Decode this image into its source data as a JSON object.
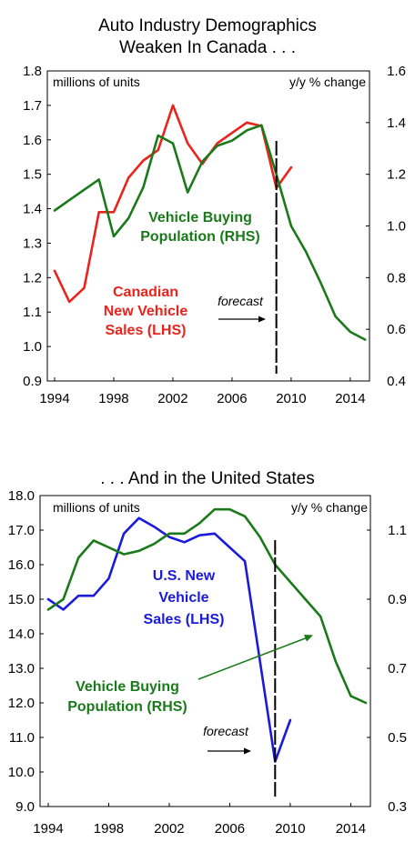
{
  "chart_data": [
    {
      "type": "line",
      "title_lines": [
        "Auto Industry Demographics",
        "Weaken In Canada . . ."
      ],
      "left_axis_note": "millions of units",
      "right_axis_note": "y/y % change",
      "ylim_left": [
        0.9,
        1.8
      ],
      "yticks_left": [
        "0.9",
        "1.0",
        "1.1",
        "1.2",
        "1.3",
        "1.4",
        "1.5",
        "1.6",
        "1.7",
        "1.8"
      ],
      "ylim_right": [
        0.4,
        1.6
      ],
      "yticks_right": [
        "0.4",
        "0.6",
        "0.8",
        "1.0",
        "1.2",
        "1.4",
        "1.6"
      ],
      "xlim": [
        1994,
        2015
      ],
      "xticks": [
        "1994",
        "1998",
        "2002",
        "2006",
        "2010",
        "2014"
      ],
      "forecast_year": 2009,
      "forecast_label": "forecast",
      "labels": {
        "rhs": [
          "Vehicle Buying",
          "Population (RHS)"
        ],
        "lhs": [
          "Canadian",
          "New Vehicle",
          "Sales (LHS)"
        ]
      },
      "series": [
        {
          "name": "Canadian New Vehicle Sales (LHS)",
          "axis": "left",
          "color": "#e8241c",
          "x": [
            1994,
            1995,
            1996,
            1997,
            1998,
            1999,
            2000,
            2001,
            2002,
            2003,
            2004,
            2005,
            2006,
            2007,
            2008,
            2009,
            2010
          ],
          "y": [
            1.22,
            1.13,
            1.17,
            1.39,
            1.39,
            1.49,
            1.54,
            1.57,
            1.7,
            1.59,
            1.53,
            1.59,
            1.62,
            1.65,
            1.64,
            1.46,
            1.52
          ]
        },
        {
          "name": "Vehicle Buying Population (RHS)",
          "axis": "right",
          "color": "#1a7a1a",
          "x": [
            1994,
            1995,
            1996,
            1997,
            1998,
            1999,
            2000,
            2001,
            2002,
            2003,
            2004,
            2005,
            2006,
            2007,
            2008,
            2009,
            2010,
            2011,
            2012,
            2013,
            2014,
            2015
          ],
          "y": [
            1.06,
            1.1,
            1.14,
            1.18,
            0.96,
            1.03,
            1.15,
            1.35,
            1.32,
            1.13,
            1.25,
            1.31,
            1.33,
            1.37,
            1.39,
            1.2,
            1.0,
            0.9,
            0.78,
            0.65,
            0.59,
            0.56
          ]
        }
      ]
    },
    {
      "type": "line",
      "title_lines": [
        ". . . And in the United States"
      ],
      "left_axis_note": "millions of units",
      "right_axis_note": "y/y % change",
      "ylim_left": [
        9.0,
        18.0
      ],
      "yticks_left": [
        "9.0",
        "10.0",
        "11.0",
        "12.0",
        "13.0",
        "14.0",
        "15.0",
        "16.0",
        "17.0",
        "18.0"
      ],
      "ylim_right": [
        0.3,
        1.2
      ],
      "yticks_right": [
        "0.3",
        "0.5",
        "0.7",
        "0.9",
        "1.1"
      ],
      "xlim": [
        1994,
        2015
      ],
      "xticks": [
        "1994",
        "1998",
        "2002",
        "2006",
        "2010",
        "2014"
      ],
      "forecast_year": 2009,
      "forecast_label": "forecast",
      "labels": {
        "lhs": [
          "U.S. New",
          "Vehicle",
          "Sales (LHS)"
        ],
        "rhs": [
          "Vehicle Buying",
          "Population (RHS)"
        ]
      },
      "series": [
        {
          "name": "U.S. New Vehicle Sales (LHS)",
          "axis": "left",
          "color": "#1a1adb",
          "x": [
            1994,
            1995,
            1996,
            1997,
            1998,
            1999,
            2000,
            2001,
            2002,
            2003,
            2004,
            2005,
            2006,
            2007,
            2008,
            2009,
            2010
          ],
          "y": [
            15.0,
            14.7,
            15.1,
            15.1,
            15.6,
            16.9,
            17.35,
            17.1,
            16.8,
            16.65,
            16.85,
            16.9,
            16.5,
            16.1,
            13.2,
            10.3,
            11.5
          ]
        },
        {
          "name": "Vehicle Buying Population (RHS)",
          "axis": "right",
          "color": "#1a7a1a",
          "x": [
            1994,
            1995,
            1996,
            1997,
            1998,
            1999,
            2000,
            2001,
            2002,
            2003,
            2004,
            2005,
            2006,
            2007,
            2008,
            2009,
            2010,
            2011,
            2012,
            2013,
            2014,
            2015
          ],
          "y": [
            0.87,
            0.9,
            1.02,
            1.07,
            1.05,
            1.03,
            1.04,
            1.06,
            1.09,
            1.09,
            1.12,
            1.16,
            1.16,
            1.14,
            1.08,
            1.0,
            0.95,
            0.9,
            0.85,
            0.72,
            0.62,
            0.6
          ]
        }
      ]
    }
  ]
}
